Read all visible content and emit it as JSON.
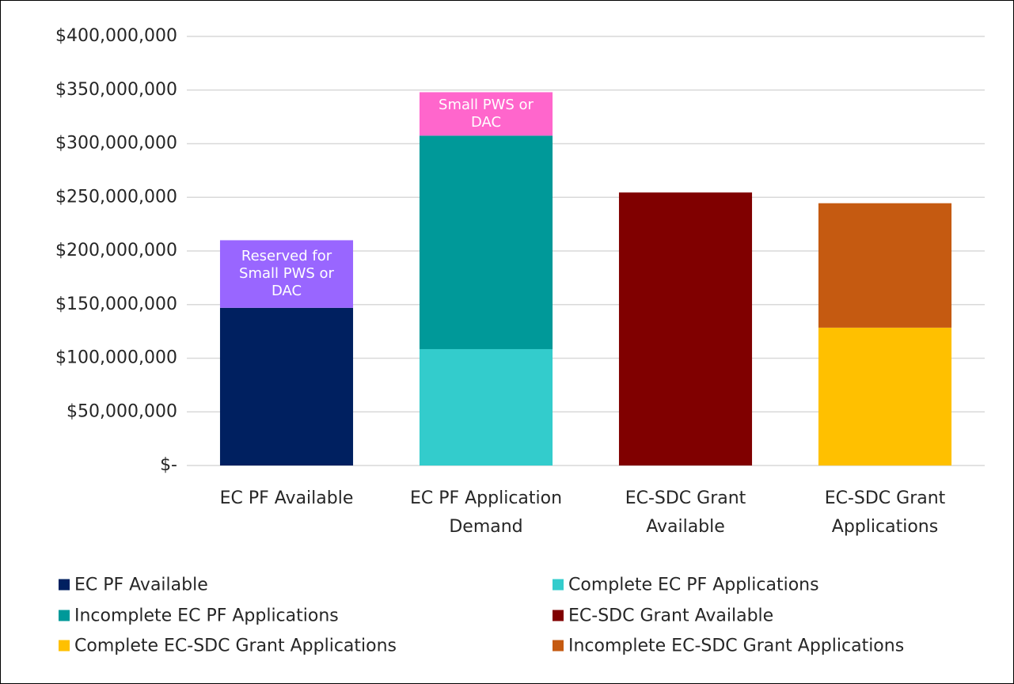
{
  "chart_data": {
    "type": "stacked_bar",
    "categories": [
      "EC PF Available",
      "EC PF Application Demand",
      "EC-SDC Grant Available",
      "EC-SDC Grant Applications"
    ],
    "series": [
      {
        "name": "EC PF Available",
        "color": "#002060",
        "values": [
          147000000,
          null,
          null,
          null
        ]
      },
      {
        "name": "Reserved for Small PWS or DAC",
        "color": "#9966ff",
        "values": [
          63000000,
          null,
          null,
          null
        ],
        "show_in_legend": false
      },
      {
        "name": "Complete EC PF Applications",
        "color": "#33cccc",
        "values": [
          null,
          108500000,
          null,
          null
        ]
      },
      {
        "name": "Incomplete EC PF Applications",
        "color": "#009999",
        "values": [
          null,
          199000000,
          null,
          null
        ]
      },
      {
        "name": "Small PWS or DAC",
        "color": "#ff66cc",
        "values": [
          null,
          40500000,
          null,
          null
        ],
        "show_in_legend": false
      },
      {
        "name": "EC-SDC Grant Available",
        "color": "#800000",
        "values": [
          null,
          null,
          254500000,
          null
        ]
      },
      {
        "name": "Complete EC-SDC Grant Applications",
        "color": "#ffc000",
        "values": [
          null,
          null,
          null,
          128500000
        ]
      },
      {
        "name": "Incomplete EC-SDC Grant Applications",
        "color": "#c55a11",
        "values": [
          null,
          null,
          null,
          116000000
        ]
      }
    ],
    "ylim": [
      0,
      400000000
    ],
    "yticks": [
      {
        "value": 0,
        "label": "$-"
      },
      {
        "value": 50000000,
        "label": "$50,000,000"
      },
      {
        "value": 100000000,
        "label": "$100,000,000"
      },
      {
        "value": 150000000,
        "label": "$150,000,000"
      },
      {
        "value": 200000000,
        "label": "$200,000,000"
      },
      {
        "value": 250000000,
        "label": "$250,000,000"
      },
      {
        "value": 300000000,
        "label": "$300,000,000"
      },
      {
        "value": 350000000,
        "label": "$350,000,000"
      },
      {
        "value": 400000000,
        "label": "$400,000,000"
      }
    ],
    "grid": true,
    "legend": "bottom"
  }
}
